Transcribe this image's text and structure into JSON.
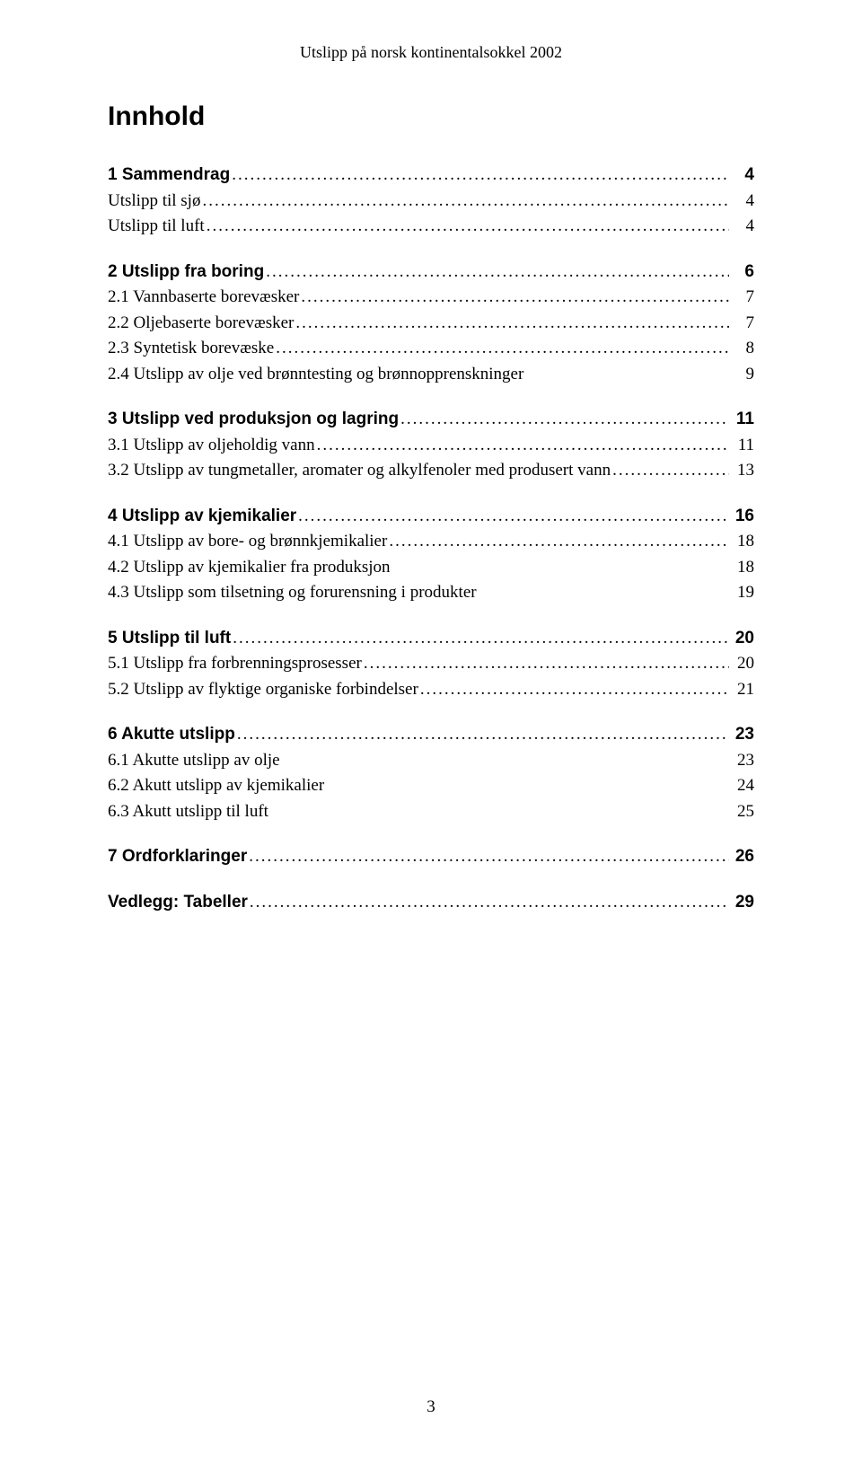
{
  "header": "Utslipp på norsk kontinentalsokkel 2002",
  "title": "Innhold",
  "page_number": "3",
  "toc": [
    {
      "items": [
        {
          "label": "1 Sammendrag",
          "page": "4",
          "bold": true,
          "leader": true
        },
        {
          "label": "Utslipp til sjø",
          "page": "4",
          "bold": false,
          "leader": true
        },
        {
          "label": "Utslipp til luft",
          "page": "4",
          "bold": false,
          "leader": true
        }
      ]
    },
    {
      "items": [
        {
          "label": "2 Utslipp fra boring",
          "page": "6",
          "bold": true,
          "leader": true
        },
        {
          "label": "2.1  Vannbaserte borevæsker",
          "page": "7",
          "bold": false,
          "leader": true
        },
        {
          "label": "2.2  Oljebaserte borevæsker",
          "page": "7",
          "bold": false,
          "leader": true
        },
        {
          "label": "2.3  Syntetisk borevæske",
          "page": "8",
          "bold": false,
          "leader": true
        },
        {
          "label": "2.4  Utslipp av olje ved brønntesting og brønnopprenskninger",
          "page": "9",
          "bold": false,
          "leader": false
        }
      ]
    },
    {
      "items": [
        {
          "label": "3 Utslipp ved produksjon og lagring",
          "page": "11",
          "bold": true,
          "leader": true
        },
        {
          "label": "3.1  Utslipp av oljeholdig vann",
          "page": "11",
          "bold": false,
          "leader": true
        },
        {
          "label": "3.2  Utslipp av tungmetaller, aromater og alkylfenoler med produsert vann",
          "page": "13",
          "bold": false,
          "leader": true
        }
      ]
    },
    {
      "items": [
        {
          "label": "4 Utslipp av kjemikalier",
          "page": "16",
          "bold": true,
          "leader": true
        },
        {
          "label": "4.1  Utslipp av bore- og brønnkjemikalier",
          "page": "18",
          "bold": false,
          "leader": true
        },
        {
          "label": "4.2  Utslipp av kjemikalier fra produksjon",
          "page": "18",
          "bold": false,
          "leader": false
        },
        {
          "label": "4.3  Utslipp som tilsetning og forurensning i produkter",
          "page": "19",
          "bold": false,
          "leader": false
        }
      ]
    },
    {
      "items": [
        {
          "label": "5 Utslipp til luft",
          "page": "20",
          "bold": true,
          "leader": true
        },
        {
          "label": "5.1  Utslipp fra forbrenningsprosesser",
          "page": "20",
          "bold": false,
          "leader": true
        },
        {
          "label": "5.2  Utslipp av flyktige organiske forbindelser",
          "page": "21",
          "bold": false,
          "leader": true
        }
      ]
    },
    {
      "items": [
        {
          "label": "6 Akutte utslipp",
          "page": "23",
          "bold": true,
          "leader": true
        },
        {
          "label": "6.1  Akutte utslipp av olje",
          "page": "23",
          "bold": false,
          "leader": false
        },
        {
          "label": "6.2  Akutt utslipp av kjemikalier",
          "page": "24",
          "bold": false,
          "leader": false
        },
        {
          "label": "6.3  Akutt utslipp til luft",
          "page": "25",
          "bold": false,
          "leader": false
        }
      ]
    },
    {
      "items": [
        {
          "label": "7 Ordforklaringer",
          "page": "26",
          "bold": true,
          "leader": true
        }
      ]
    },
    {
      "items": [
        {
          "label": "Vedlegg: Tabeller",
          "page": "29",
          "bold": true,
          "leader": true
        }
      ]
    }
  ]
}
